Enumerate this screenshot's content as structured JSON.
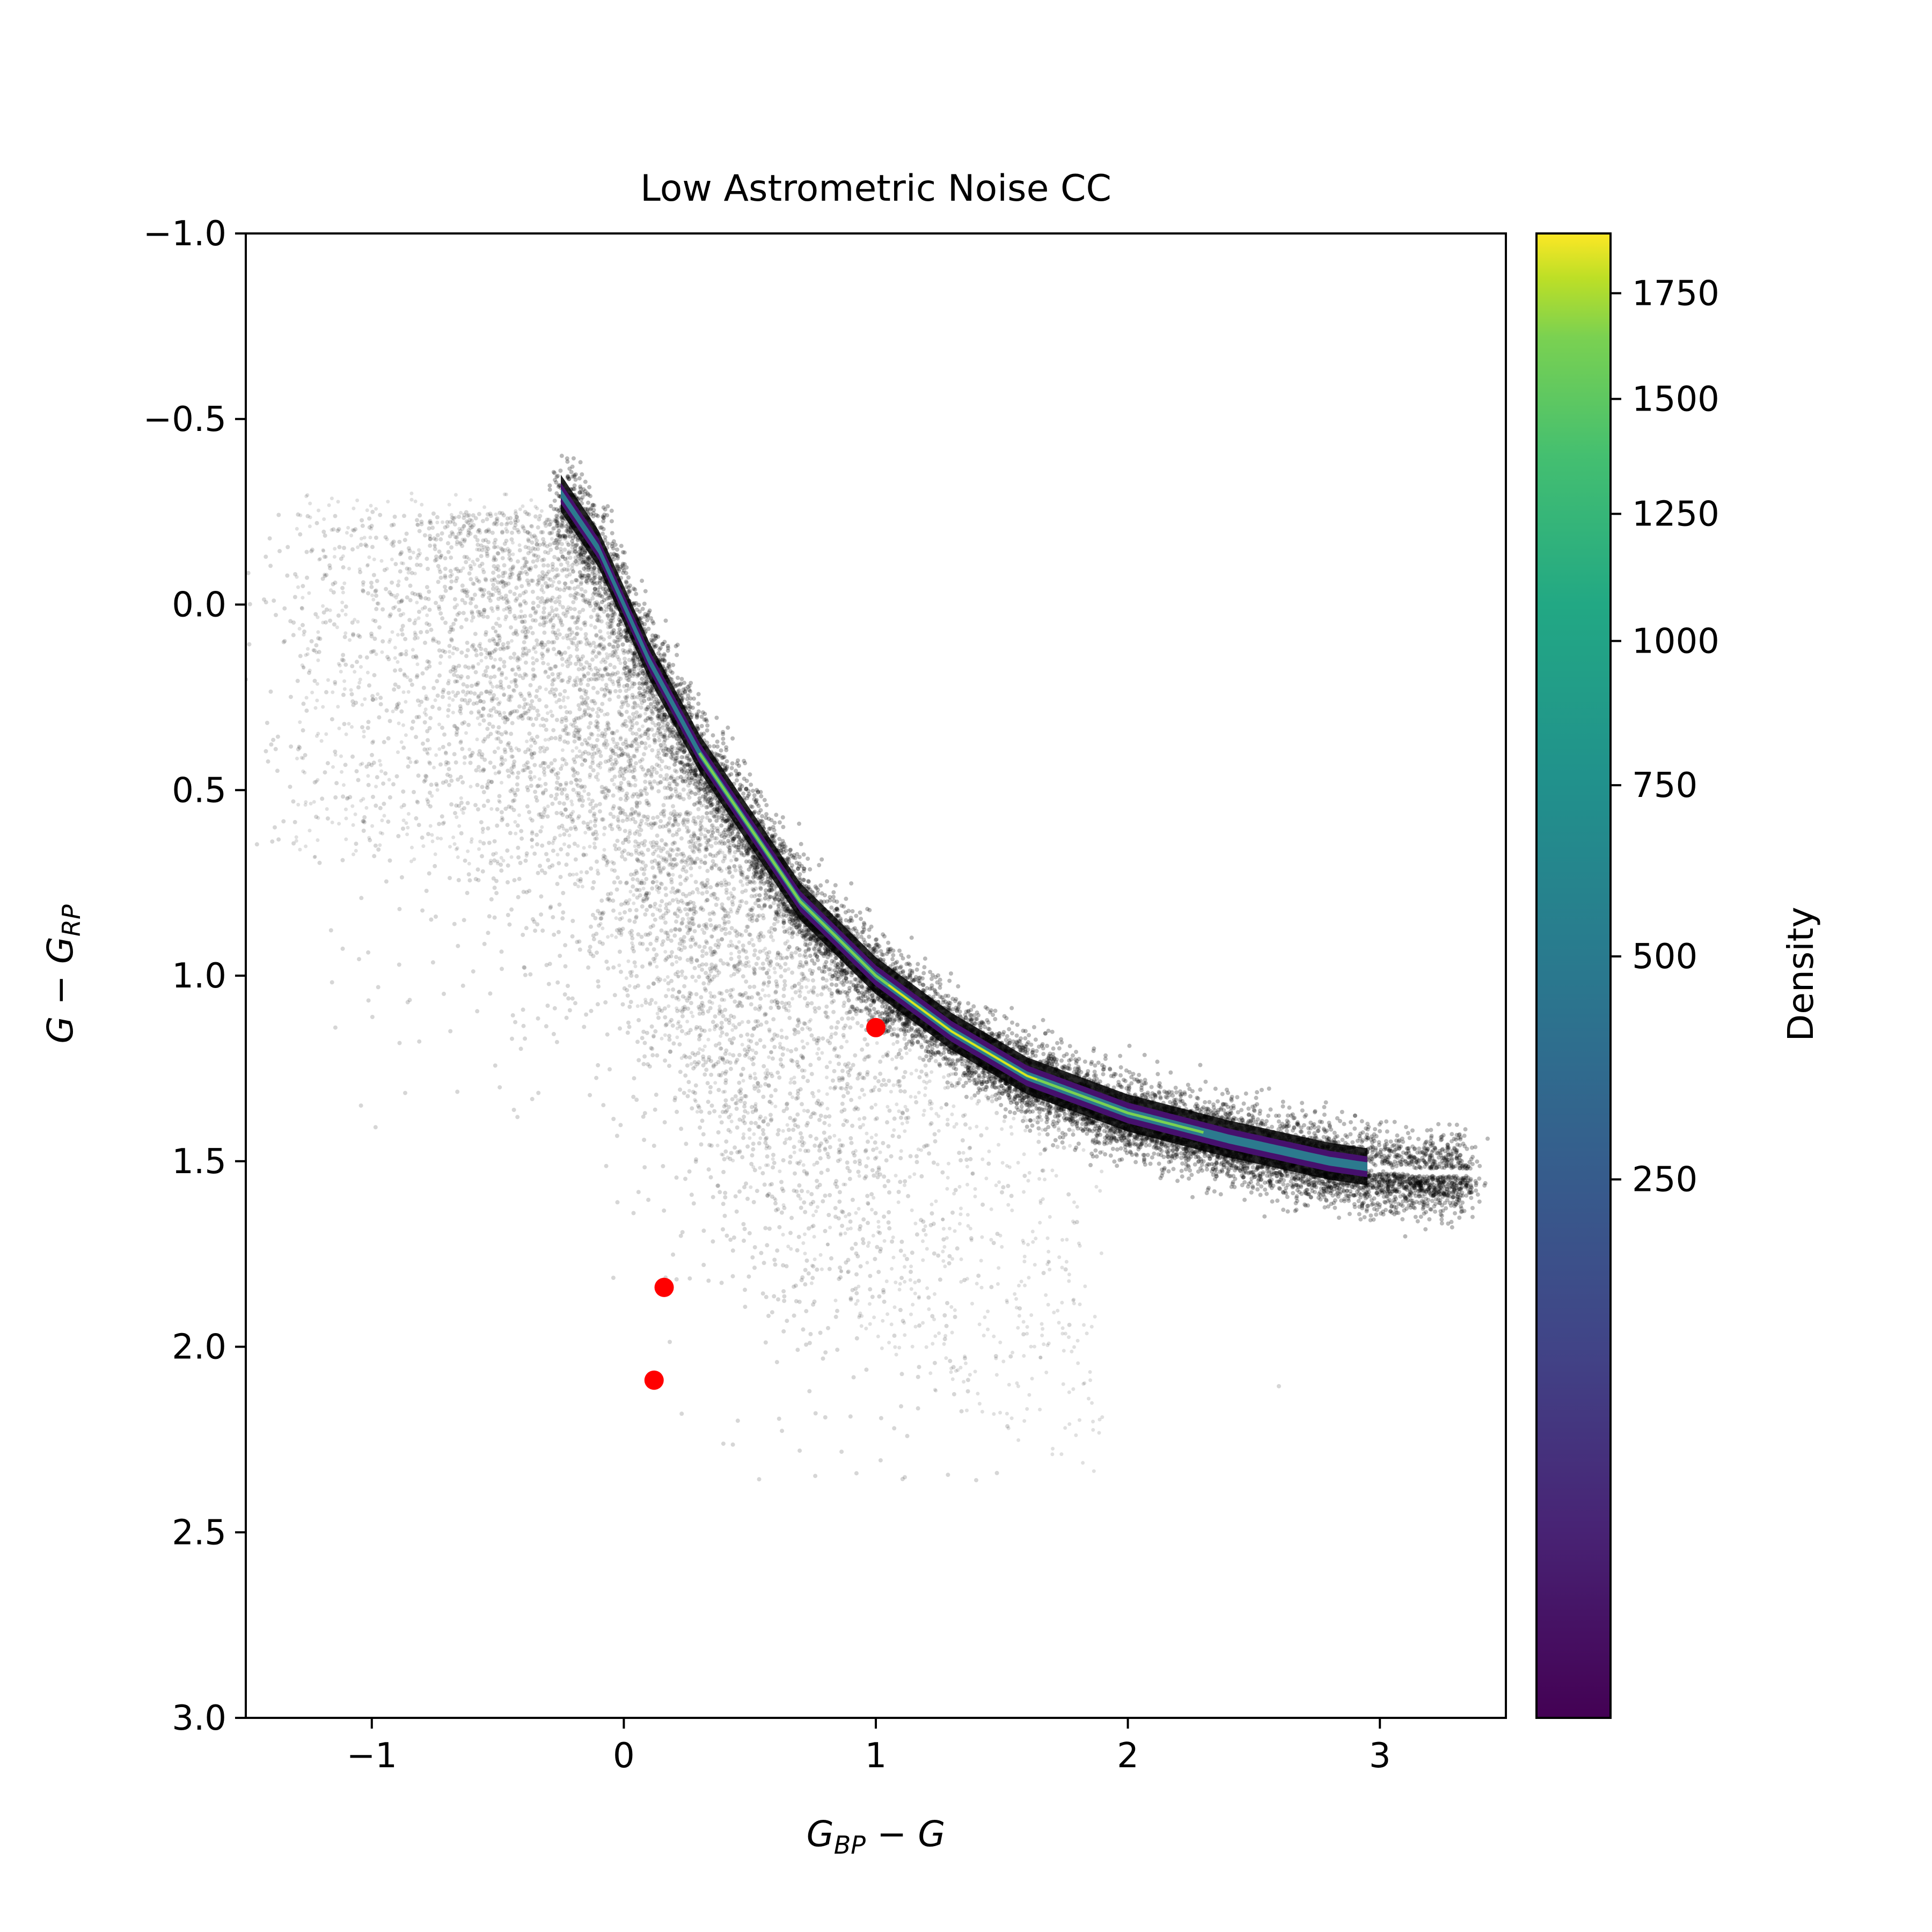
{
  "chart_data": {
    "type": "scatter",
    "title": "Low Astrometric Noise CC",
    "xlabel": {
      "main": "G",
      "sub": "BP",
      "rest": " − G"
    },
    "ylabel": {
      "main": "G − G",
      "sub": "RP"
    },
    "xlim": [
      -1.5,
      3.5
    ],
    "ylim": [
      3.0,
      -1.0
    ],
    "y_inverted": true,
    "grid": false,
    "x_ticks": [
      -1,
      0,
      1,
      2,
      3
    ],
    "x_tick_labels": [
      "−1",
      "0",
      "1",
      "2",
      "3"
    ],
    "y_ticks": [
      -1.0,
      -0.5,
      0.0,
      0.5,
      1.0,
      1.5,
      2.0,
      2.5,
      3.0
    ],
    "y_tick_labels": [
      "−1.0",
      "−0.5",
      "0.0",
      "0.5",
      "1.0",
      "1.5",
      "2.0",
      "2.5",
      "3.0"
    ],
    "colorbar": {
      "label": "Density",
      "range": [
        0,
        1900
      ],
      "scale": "sqrt",
      "colormap": "viridis",
      "ticks": [
        250,
        500,
        750,
        1000,
        1250,
        1500,
        1750
      ],
      "tick_labels": [
        "250",
        "500",
        "750",
        "1000",
        "1250",
        "1500",
        "1750"
      ]
    },
    "density_locus": {
      "description_points_x": [
        -0.25,
        -0.1,
        0.1,
        0.3,
        0.5,
        0.7,
        1.0,
        1.3,
        1.6,
        2.0,
        2.4,
        2.8,
        3.1
      ],
      "description_points_y": [
        -0.3,
        -0.15,
        0.15,
        0.4,
        0.6,
        0.8,
        1.0,
        1.15,
        1.27,
        1.37,
        1.44,
        1.5,
        1.53
      ],
      "peak_density": 1900
    },
    "scatter_sample_dots": "rendered procedurally around the locus",
    "highlighted_points": [
      {
        "x": 1.0,
        "y": 1.14,
        "color": "#ff0000"
      },
      {
        "x": 0.16,
        "y": 1.84,
        "color": "#ff0000"
      },
      {
        "x": 0.12,
        "y": 2.09,
        "color": "#ff0000"
      }
    ]
  }
}
